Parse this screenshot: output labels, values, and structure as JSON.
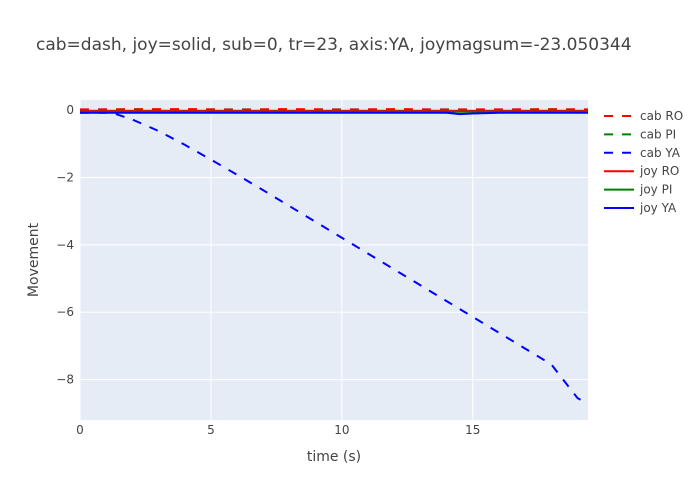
{
  "chart_data": {
    "type": "line",
    "title": "cab=dash, joy=solid, sub=0, tr=23, axis:YA, joymagsum=-23.050344",
    "xlabel": "time (s)",
    "ylabel": "Movement",
    "xlim": [
      0,
      19.4
    ],
    "ylim": [
      -9.2,
      0.3
    ],
    "xticks": [
      0,
      5,
      10,
      15
    ],
    "xtick_labels": [
      "0",
      "5",
      "10",
      "15"
    ],
    "yticks": [
      0,
      -2,
      -4,
      -6,
      -8
    ],
    "ytick_labels": [
      "0",
      "−2",
      "−4",
      "−6",
      "−8"
    ],
    "grid": true,
    "legend_position": "right",
    "series": [
      {
        "name": "cab RO",
        "color": "#ff0000",
        "dash": "dash",
        "x": [
          0,
          2,
          4,
          6,
          8,
          10,
          12,
          14,
          16,
          18,
          19.4
        ],
        "y": [
          0.02,
          0.03,
          0.03,
          0.02,
          0.03,
          0.02,
          0.03,
          0.02,
          0.02,
          0.03,
          0.02
        ]
      },
      {
        "name": "cab PI",
        "color": "#008000",
        "dash": "dash",
        "x": [
          0,
          2,
          4,
          6,
          8,
          10,
          12,
          14,
          16,
          18,
          19.4
        ],
        "y": [
          0.0,
          0.01,
          0.0,
          0.01,
          0.0,
          0.01,
          0.0,
          0.01,
          0.0,
          0.01,
          0.0
        ]
      },
      {
        "name": "cab YA",
        "color": "#0000ff",
        "dash": "dash",
        "x": [
          0,
          1,
          1.3,
          2,
          3,
          4,
          5,
          6,
          7,
          8,
          9,
          10,
          11,
          12,
          13,
          14,
          15,
          16,
          17,
          18,
          19,
          19.4
        ],
        "y": [
          -0.08,
          -0.08,
          -0.1,
          -0.28,
          -0.62,
          -1.03,
          -1.47,
          -1.92,
          -2.38,
          -2.85,
          -3.32,
          -3.79,
          -4.26,
          -4.73,
          -5.2,
          -5.67,
          -6.14,
          -6.61,
          -7.08,
          -7.55,
          -8.55,
          -8.72
        ]
      },
      {
        "name": "joy RO",
        "color": "#ff0000",
        "dash": "solid",
        "x": [
          0,
          2,
          4,
          6,
          8,
          10,
          12,
          14,
          16,
          18,
          19.4
        ],
        "y": [
          -0.02,
          -0.02,
          -0.02,
          -0.02,
          -0.02,
          -0.02,
          -0.02,
          -0.02,
          -0.02,
          -0.02,
          -0.02
        ]
      },
      {
        "name": "joy PI",
        "color": "#008000",
        "dash": "solid",
        "x": [
          0,
          2,
          4,
          6,
          8,
          10,
          12,
          14,
          16,
          18,
          19.4
        ],
        "y": [
          -0.05,
          -0.05,
          -0.05,
          -0.05,
          -0.05,
          -0.05,
          -0.05,
          -0.05,
          -0.05,
          -0.05,
          -0.05
        ]
      },
      {
        "name": "joy YA",
        "color": "#0000ff",
        "dash": "solid",
        "x": [
          0,
          2,
          4,
          6,
          8,
          10,
          12,
          14,
          14.5,
          15,
          16,
          18,
          19.4
        ],
        "y": [
          -0.08,
          -0.08,
          -0.08,
          -0.08,
          -0.08,
          -0.08,
          -0.08,
          -0.08,
          -0.12,
          -0.1,
          -0.08,
          -0.08,
          -0.08
        ]
      }
    ]
  }
}
